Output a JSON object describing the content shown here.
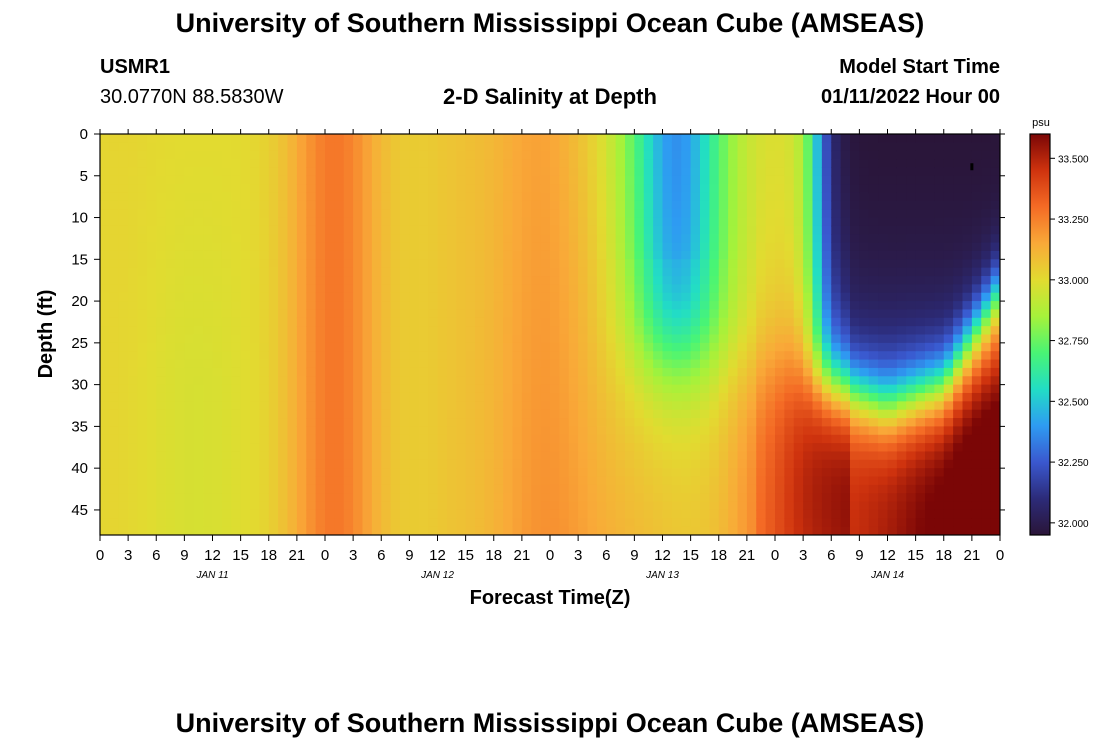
{
  "page_title": "University of Southern Mississippi Ocean Cube (AMSEAS)",
  "station": {
    "id": "USMR1",
    "coords": "30.0770N  88.5830W"
  },
  "plot_title": "2-D Salinity at Depth",
  "model": {
    "label": "Model Start Time",
    "value": "01/11/2022 Hour 00"
  },
  "footer_title": "University of Southern Mississippi Ocean Cube (AMSEAS)",
  "chart_data": {
    "type": "heatmap",
    "title": "2-D Salinity at Depth",
    "xlabel": "Forecast Time(Z)",
    "ylabel": "Depth (ft)",
    "x_range_hours": [
      0,
      96
    ],
    "y_range_ft": [
      0,
      48
    ],
    "x_tick_labels": [
      "0",
      "3",
      "6",
      "9",
      "12",
      "15",
      "18",
      "21",
      "0",
      "3",
      "6",
      "9",
      "12",
      "15",
      "18",
      "21",
      "0",
      "3",
      "6",
      "9",
      "12",
      "15",
      "18",
      "21",
      "0",
      "3",
      "6",
      "9",
      "12",
      "15",
      "18",
      "21",
      "0"
    ],
    "day_labels": [
      {
        "label": "JAN 11",
        "hour": 12
      },
      {
        "label": "JAN 12",
        "hour": 36
      },
      {
        "label": "JAN 13",
        "hour": 60
      },
      {
        "label": "JAN 14",
        "hour": 84
      }
    ],
    "y_ticks": [
      0,
      5,
      10,
      15,
      20,
      25,
      30,
      35,
      40,
      45
    ],
    "colorbar": {
      "unit": "psu",
      "min": 31.95,
      "max": 33.6,
      "ticks": [
        "33.500",
        "33.250",
        "33.000",
        "32.750",
        "32.500",
        "32.250",
        "32.000"
      ],
      "tick_values": [
        33.5,
        33.25,
        33.0,
        32.75,
        32.5,
        32.25,
        32.0
      ],
      "colors": [
        "#2a1538",
        "#2c2b79",
        "#3a58cf",
        "#2e9bf2",
        "#22ddc5",
        "#49f574",
        "#a6f23a",
        "#e2db30",
        "#f9a938",
        "#f46b25",
        "#cf330e",
        "#7b0606"
      ]
    },
    "salinity_profile_surface_psu": [
      {
        "hour": 0,
        "value": 32.98
      },
      {
        "hour": 12,
        "value": 33.0
      },
      {
        "hour": 24,
        "value": 33.28
      },
      {
        "hour": 36,
        "value": 33.07
      },
      {
        "hour": 48,
        "value": 33.16
      },
      {
        "hour": 60,
        "value": 32.55
      },
      {
        "hour": 72,
        "value": 33.0
      },
      {
        "hour": 84,
        "value": 32.0
      },
      {
        "hour": 96,
        "value": 32.05
      }
    ],
    "salinity_profile_bottom_psu": [
      {
        "hour": 0,
        "value": 33.05
      },
      {
        "hour": 12,
        "value": 32.97
      },
      {
        "hour": 24,
        "value": 33.22
      },
      {
        "hour": 36,
        "value": 33.12
      },
      {
        "hour": 48,
        "value": 33.18
      },
      {
        "hour": 60,
        "value": 33.08
      },
      {
        "hour": 72,
        "value": 33.3
      },
      {
        "hour": 84,
        "value": 33.45
      },
      {
        "hour": 96,
        "value": 33.58
      }
    ]
  }
}
